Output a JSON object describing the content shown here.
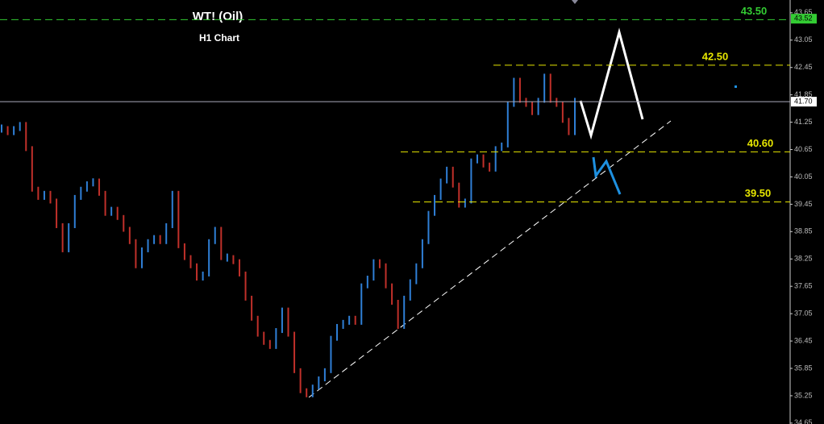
{
  "chart_data": {
    "type": "bars",
    "title": "WT! (Oil)",
    "subtitle": "H1 Chart",
    "values": [
      41.11,
      41.02,
      41.11,
      41.2,
      40.67,
      39.78,
      39.6,
      39.69,
      39.52,
      38.98,
      38.45,
      38.98,
      39.6,
      39.78,
      39.9,
      39.96,
      39.69,
      39.25,
      39.34,
      39.16,
      38.9,
      38.63,
      38.1,
      38.45,
      38.63,
      38.72,
      38.63,
      38.98,
      39.69,
      38.54,
      38.28,
      38.1,
      37.83,
      37.92,
      38.63,
      38.9,
      38.28,
      38.28,
      38.19,
      37.92,
      37.39,
      36.95,
      36.6,
      36.42,
      36.33,
      36.68,
      37.13,
      36.6,
      35.8,
      35.36,
      35.27,
      35.44,
      35.62,
      35.8,
      36.51,
      36.77,
      36.86,
      36.95,
      36.86,
      37.66,
      37.83,
      38.19,
      38.1,
      37.66,
      37.3,
      36.77,
      37.39,
      37.75,
      38.1,
      38.63,
      39.25,
      39.6,
      39.96,
      40.22,
      39.87,
      39.43,
      39.52,
      40.4,
      40.49,
      40.31,
      40.22,
      40.67,
      40.75,
      41.64,
      42.17,
      41.73,
      41.64,
      41.46,
      41.73,
      42.26,
      41.73,
      41.64,
      41.29,
      41.02,
      41.73
    ],
    "up_color": "#2f7fd6",
    "down_color": "#c0302a",
    "ylim": [
      34.63,
      43.93
    ],
    "yticks": [
      34.65,
      35.25,
      35.85,
      36.45,
      37.05,
      37.65,
      38.25,
      38.85,
      39.45,
      40.05,
      40.65,
      41.25,
      41.85,
      42.45,
      43.05,
      43.65
    ],
    "levels": [
      {
        "value": 43.5,
        "label": "43.50",
        "color": "#33cc33"
      },
      {
        "value": 42.5,
        "label": "42.50",
        "color": "#e6e600"
      },
      {
        "value": 40.6,
        "label": "40.60",
        "color": "#e6e600"
      },
      {
        "value": 39.5,
        "label": "39.50",
        "color": "#e6e600"
      }
    ],
    "current_price": {
      "value": 41.7,
      "label": "41.70"
    },
    "ask_price": {
      "value": 43.52,
      "label": "43.52"
    }
  }
}
